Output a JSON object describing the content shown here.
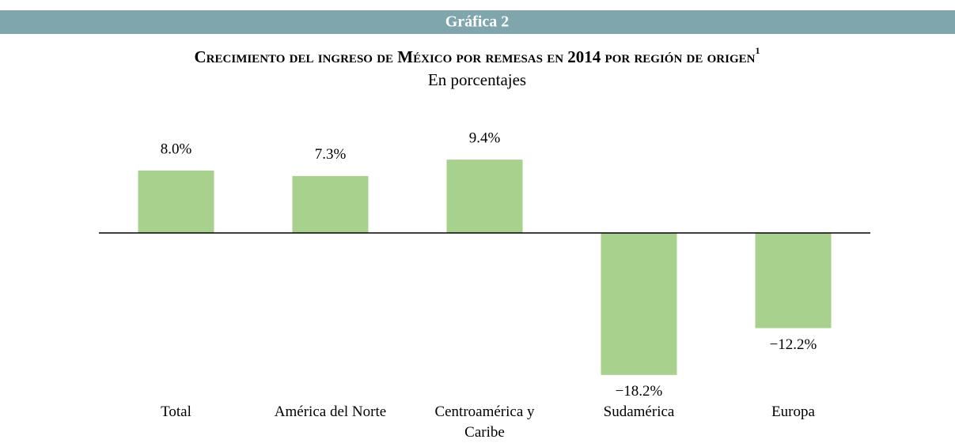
{
  "chart_data": {
    "type": "bar",
    "header": "Gráfica 2",
    "title": "Crecimiento del ingreso de México por remesas en 2014 por región de origen",
    "title_note": "1",
    "subtitle": "En porcentajes",
    "categories": [
      "Total",
      "América del Norte",
      "Centroamérica y Caribe",
      "Sudamérica",
      "Europa"
    ],
    "values": [
      8.0,
      7.3,
      9.4,
      -18.2,
      -12.2
    ],
    "value_labels": [
      "8.0%",
      "7.3%",
      "9.4%",
      "−18.2%",
      "−12.2%"
    ],
    "color": "#a9d18e"
  }
}
